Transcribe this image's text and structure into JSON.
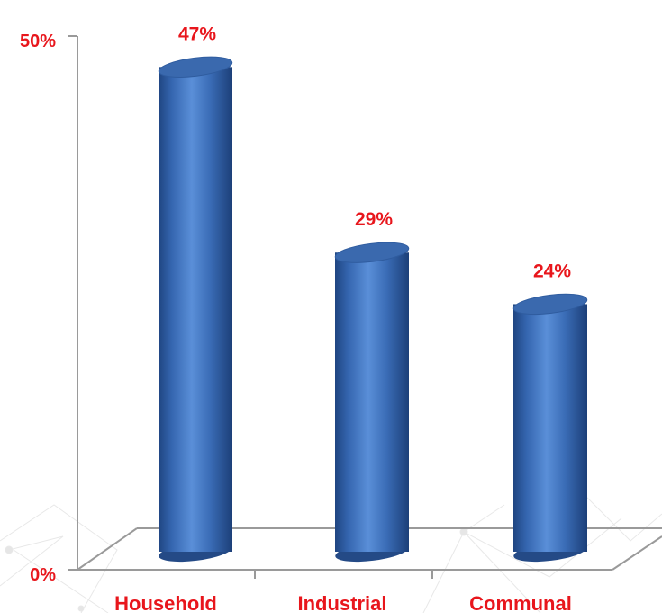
{
  "chart_data": {
    "type": "bar",
    "style": "3d-cylinder",
    "categories": [
      "Household",
      "Industrial",
      "Communal"
    ],
    "values": [
      47,
      29,
      24
    ],
    "data_labels": [
      "47%",
      "29%",
      "24%"
    ],
    "y_ticks": [
      0,
      50
    ],
    "y_tick_labels": [
      "0%",
      "50%"
    ],
    "ylim": [
      0,
      50
    ],
    "grid": false,
    "legend": "none",
    "title": "",
    "xlabel": "",
    "ylabel": ""
  },
  "colors": {
    "bar": "#4a7dc4",
    "bar_dark": "#244a86",
    "bar_top": "#3a69ae",
    "label": "#e8161c",
    "axis": "#9a9a9a",
    "background_lines": "#e6e6e6"
  }
}
